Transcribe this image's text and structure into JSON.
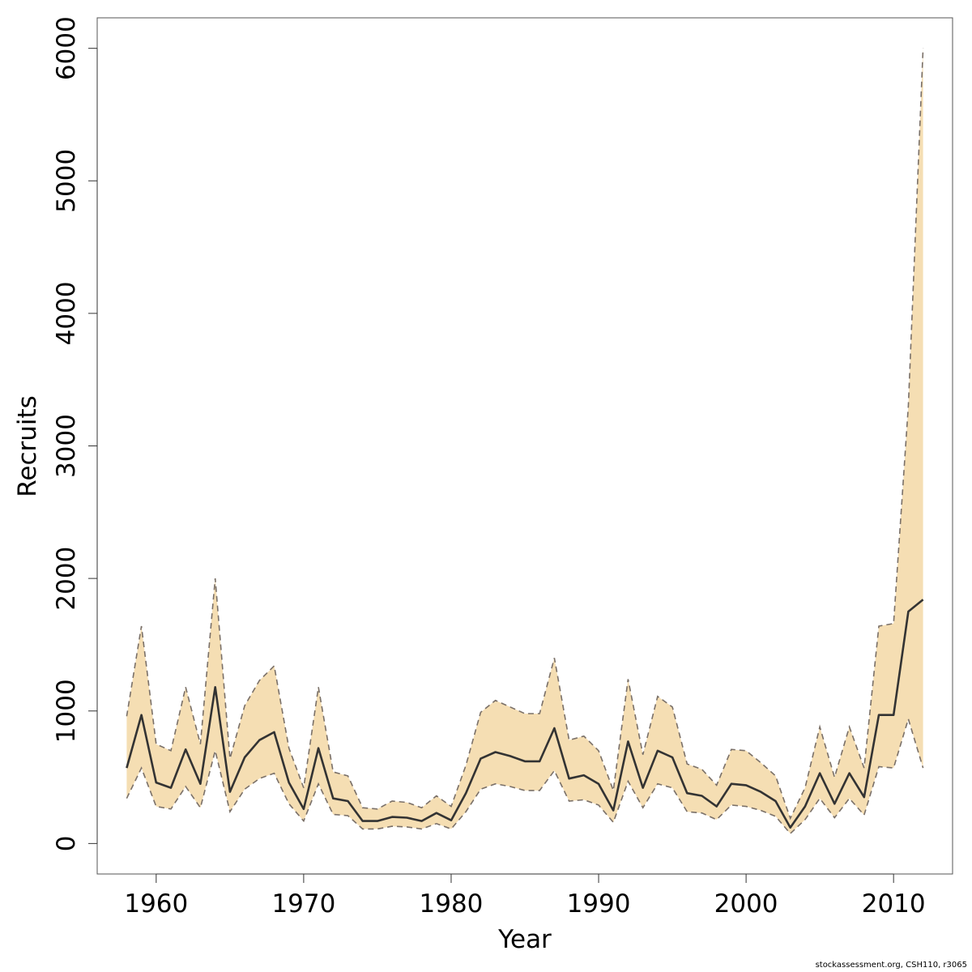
{
  "chart_data": {
    "type": "line",
    "xlabel": "Year",
    "ylabel": "Recruits",
    "xlim": [
      1956,
      2014
    ],
    "ylim": [
      -230,
      6230
    ],
    "x_ticks": [
      1960,
      1970,
      1980,
      1990,
      2000,
      2010
    ],
    "y_ticks": [
      0,
      1000,
      2000,
      3000,
      4000,
      5000,
      6000
    ],
    "grid": false,
    "legend": "none",
    "colors": {
      "band": "#f5deb3",
      "line": "#333333",
      "bounds": "#7a7068"
    },
    "x": [
      1958,
      1959,
      1960,
      1961,
      1962,
      1963,
      1964,
      1965,
      1966,
      1967,
      1968,
      1969,
      1970,
      1971,
      1972,
      1973,
      1974,
      1975,
      1976,
      1977,
      1978,
      1979,
      1980,
      1981,
      1982,
      1983,
      1984,
      1985,
      1986,
      1987,
      1988,
      1989,
      1990,
      1991,
      1992,
      1993,
      1994,
      1995,
      1996,
      1997,
      1998,
      1999,
      2000,
      2001,
      2002,
      2003,
      2004,
      2005,
      2006,
      2007,
      2008,
      2009,
      2010,
      2011,
      2012
    ],
    "series": [
      {
        "role": "estimate",
        "values": [
          570,
          970,
          460,
          420,
          710,
          450,
          1180,
          390,
          650,
          780,
          840,
          460,
          260,
          720,
          340,
          320,
          170,
          170,
          200,
          195,
          170,
          230,
          175,
          380,
          640,
          690,
          660,
          620,
          620,
          870,
          490,
          515,
          450,
          250,
          770,
          420,
          700,
          650,
          380,
          360,
          280,
          450,
          440,
          390,
          320,
          120,
          280,
          530,
          300,
          530,
          350,
          970,
          970,
          1750,
          1840
        ]
      },
      {
        "role": "upper",
        "values": [
          960,
          1640,
          750,
          700,
          1180,
          750,
          2000,
          640,
          1040,
          1230,
          1340,
          720,
          420,
          1180,
          540,
          510,
          270,
          260,
          320,
          310,
          270,
          360,
          280,
          590,
          990,
          1080,
          1030,
          980,
          980,
          1400,
          780,
          810,
          700,
          400,
          1240,
          670,
          1110,
          1030,
          600,
          560,
          440,
          710,
          700,
          610,
          510,
          190,
          420,
          880,
          500,
          880,
          570,
          1640,
          1660,
          3300,
          6000
        ]
      },
      {
        "role": "lower",
        "values": [
          340,
          570,
          280,
          260,
          430,
          270,
          700,
          240,
          410,
          490,
          530,
          300,
          170,
          450,
          220,
          210,
          110,
          110,
          130,
          125,
          110,
          150,
          110,
          240,
          410,
          450,
          430,
          400,
          400,
          550,
          320,
          330,
          290,
          160,
          470,
          270,
          450,
          420,
          240,
          230,
          180,
          290,
          280,
          250,
          205,
          75,
          180,
          340,
          195,
          340,
          215,
          580,
          570,
          940,
          570
        ]
      }
    ]
  },
  "footer": {
    "credit": "stockassessment.org, CSH110, r3065"
  }
}
